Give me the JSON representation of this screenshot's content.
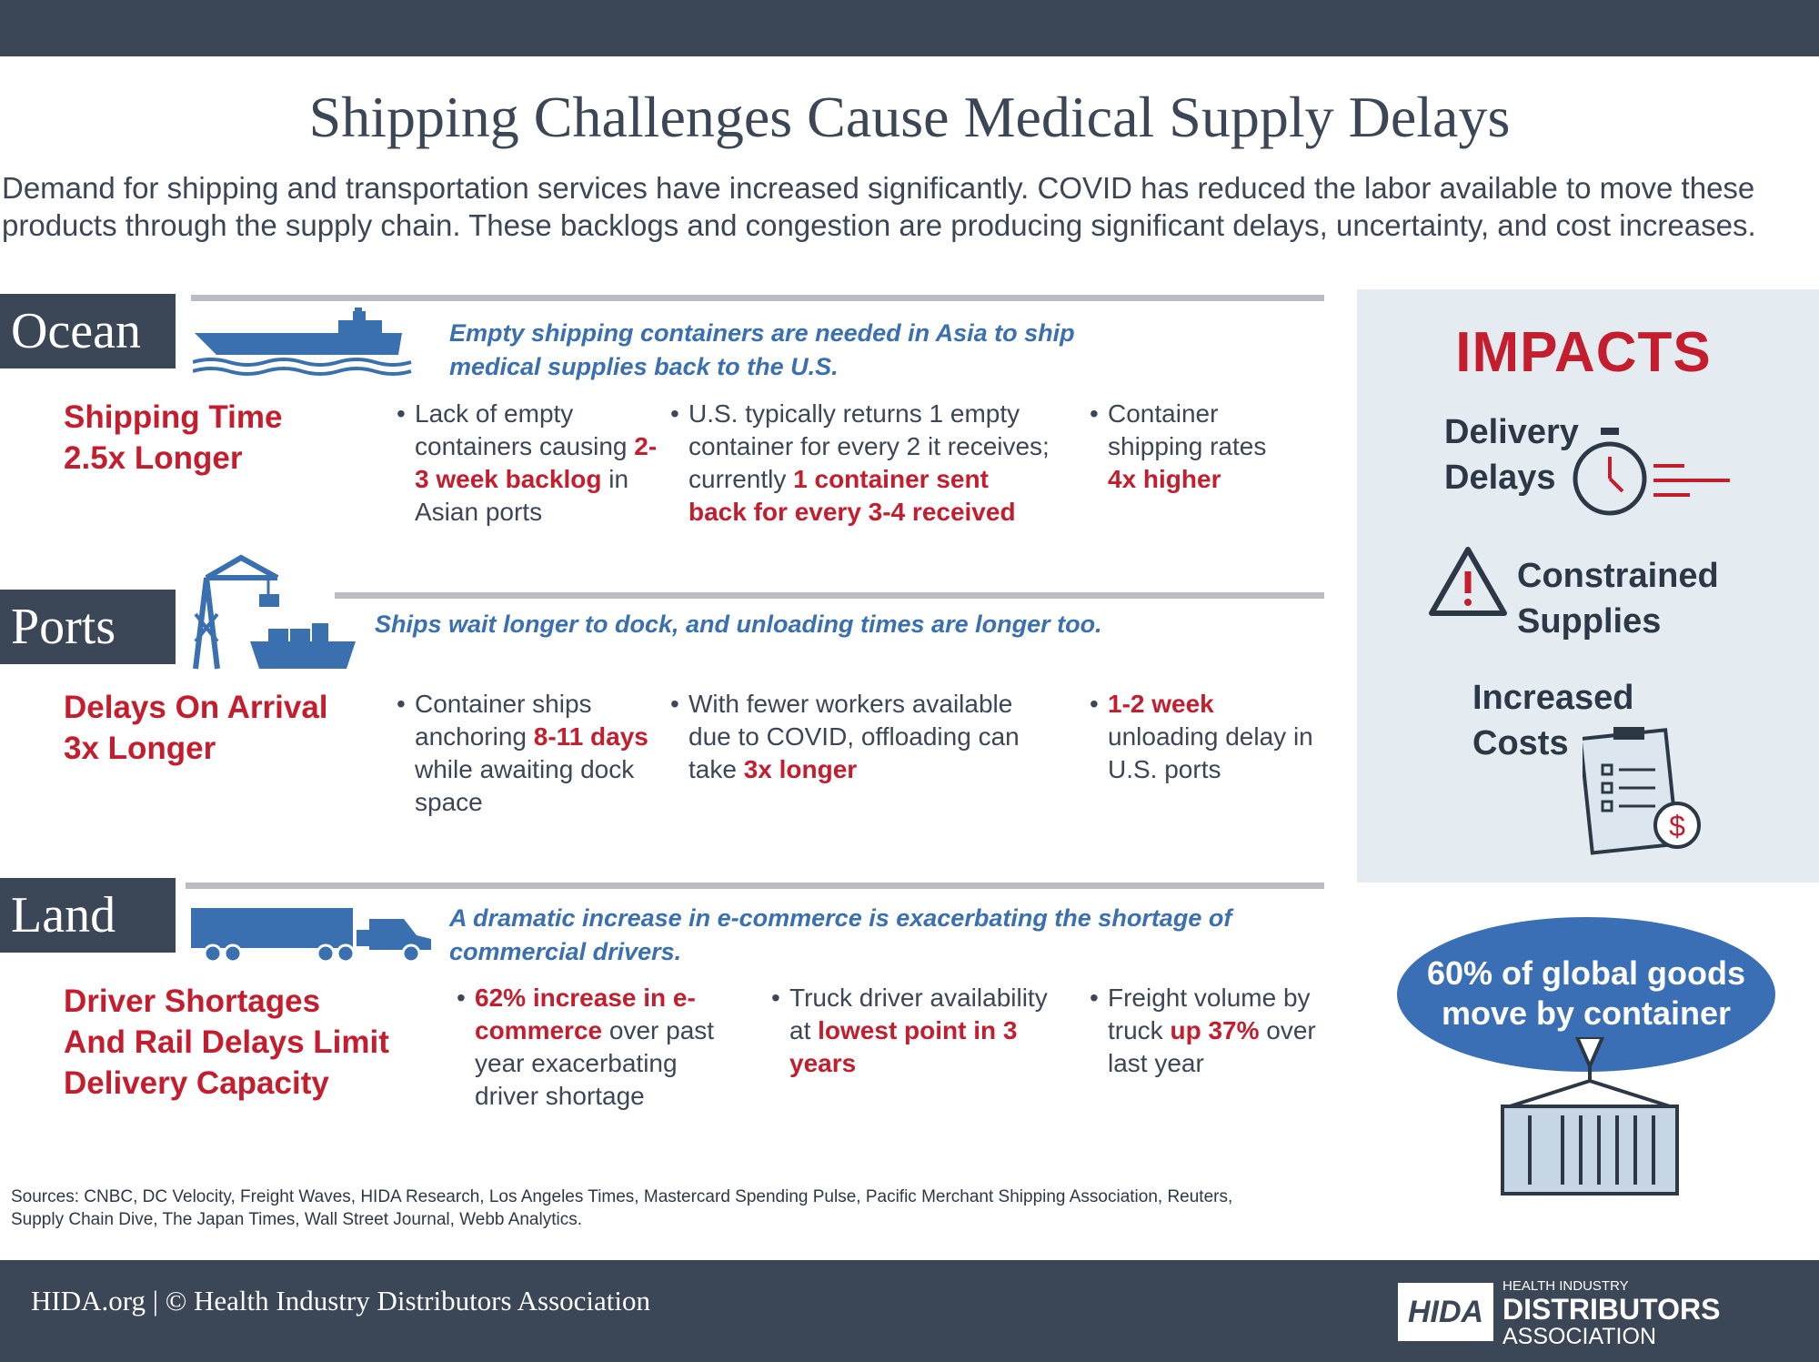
{
  "header": {
    "title": "Shipping Challenges Cause Medical Supply Delays",
    "intro": "Demand for shipping and transportation services have increased significantly.  COVID has reduced the labor available to move these products through the supply chain.  These backlogs and congestion are producing significant delays, uncertainty, and cost increases."
  },
  "ocean": {
    "tab": "Ocean",
    "tagline": "Empty shipping containers are needed in Asia to ship medical supplies back to the U.S.",
    "headline": [
      "Shipping Time",
      "2.5x Longer"
    ],
    "b1": {
      "pre": "Lack of empty containers causing ",
      "red": "2-3 week backlog",
      "post": " in Asian ports"
    },
    "b2": {
      "pre": "U.S. typically returns 1 empty container for every 2 it receives; currently ",
      "red": "1 container sent back for every 3-4 received",
      "post": ""
    },
    "b3": {
      "pre": "Container shipping rates ",
      "red": "4x higher",
      "post": ""
    }
  },
  "ports": {
    "tab": "Ports",
    "tagline": "Ships wait longer to dock, and unloading times are longer too.",
    "headline": [
      "Delays On Arrival",
      "3x Longer"
    ],
    "b1": {
      "pre": "Container ships anchoring ",
      "red": "8-11 days",
      "post": " while awaiting dock space"
    },
    "b2": {
      "pre": "With fewer workers available due to COVID, offloading can take ",
      "red": "3x longer",
      "post": ""
    },
    "b3": {
      "pre": "",
      "red": "1-2 week",
      "post": " unloading delay in U.S. ports"
    }
  },
  "land": {
    "tab": "Land",
    "tagline": "A dramatic increase in e-commerce is exacerbating the shortage of commercial drivers.",
    "headline": [
      "Driver Shortages",
      "And Rail Delays Limit",
      "Delivery Capacity"
    ],
    "b1": {
      "pre": "",
      "red": "62% increase in e-commerce",
      "post": " over past year exacerbating driver shortage"
    },
    "b2": {
      "pre": "Truck driver availability at ",
      "red": "lowest point in 3 years",
      "post": ""
    },
    "b3": {
      "pre": "Freight volume by truck ",
      "red": "up 37%",
      "post": " over last year"
    }
  },
  "impacts": {
    "title": "IMPACTS",
    "delivery": [
      "Delivery",
      "Delays"
    ],
    "constrained": [
      "Constrained",
      "Supplies"
    ],
    "costs": [
      "Increased",
      "Costs"
    ]
  },
  "container_note": [
    "60% of global goods",
    "move by container"
  ],
  "sources": "Sources: CNBC, DC Velocity, Freight Waves, HIDA Research, Los Angeles Times, Mastercard Spending Pulse, Pacific Merchant Shipping Association, Reuters, Supply Chain Dive, The Japan Times, Wall Street Journal, Webb Analytics.",
  "footer": {
    "text": "HIDA.org  | © Health Industry Distributors Association",
    "logo_mark": "HIDA",
    "logo_small": "HEALTH INDUSTRY",
    "logo_big": "DISTRIBUTORS",
    "logo_sub": "ASSOCIATION"
  },
  "colors": {
    "navy": "#3b4656",
    "red": "#c41e2e",
    "blue": "#3a6fb0",
    "panel": "#e4ecf2"
  }
}
